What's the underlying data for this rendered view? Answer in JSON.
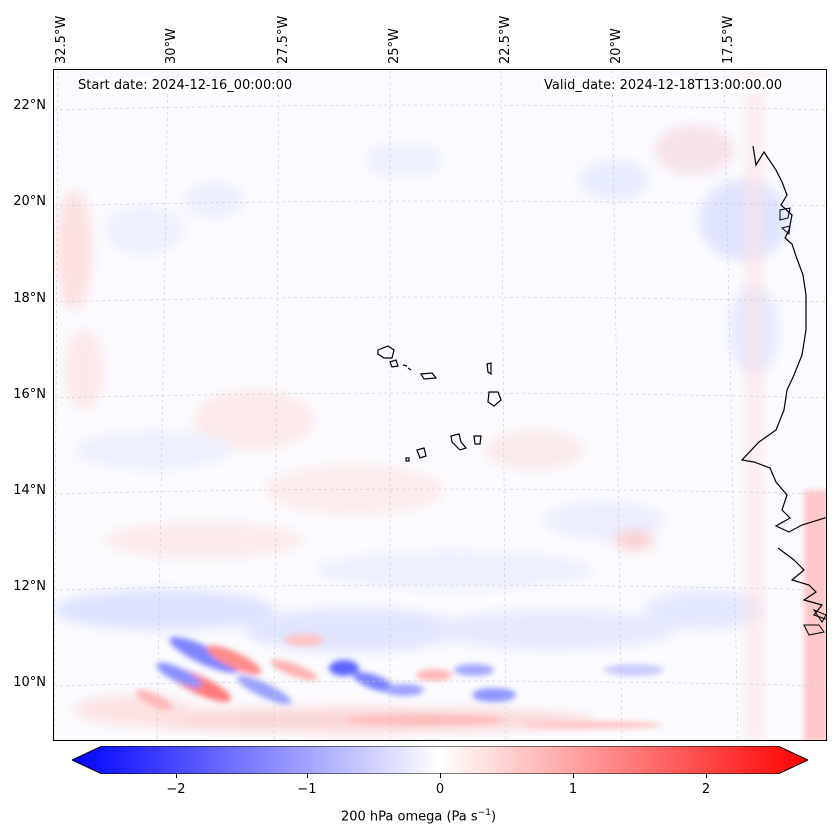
{
  "map": {
    "start_label": "Start date: 2024-12-16_00:00:00",
    "valid_label": "Valid_date: 2024-12-18T13:00:00.00",
    "longitude_labels": [
      "32.5°W",
      "30°W",
      "27.5°W",
      "25°W",
      "22.5°W",
      "20°W",
      "17.5°W"
    ],
    "latitude_labels": [
      "22°N",
      "20°N",
      "18°N",
      "16°N",
      "14°N",
      "12°N",
      "10°N"
    ],
    "field": "200 hPa omega",
    "coastline_color": "#000000",
    "gridline_style": "dashed light gray"
  },
  "colorbar": {
    "label_main": "200 hPa omega (Pa s",
    "label_exp": "−1",
    "label_end": ")",
    "ticks": [
      "−2",
      "−1",
      "0",
      "1",
      "2"
    ],
    "min_color": "#0000ff",
    "mid_color": "#ffffff",
    "max_color": "#ff0000",
    "range": [
      -2.75,
      2.75
    ],
    "extend": "both"
  }
}
